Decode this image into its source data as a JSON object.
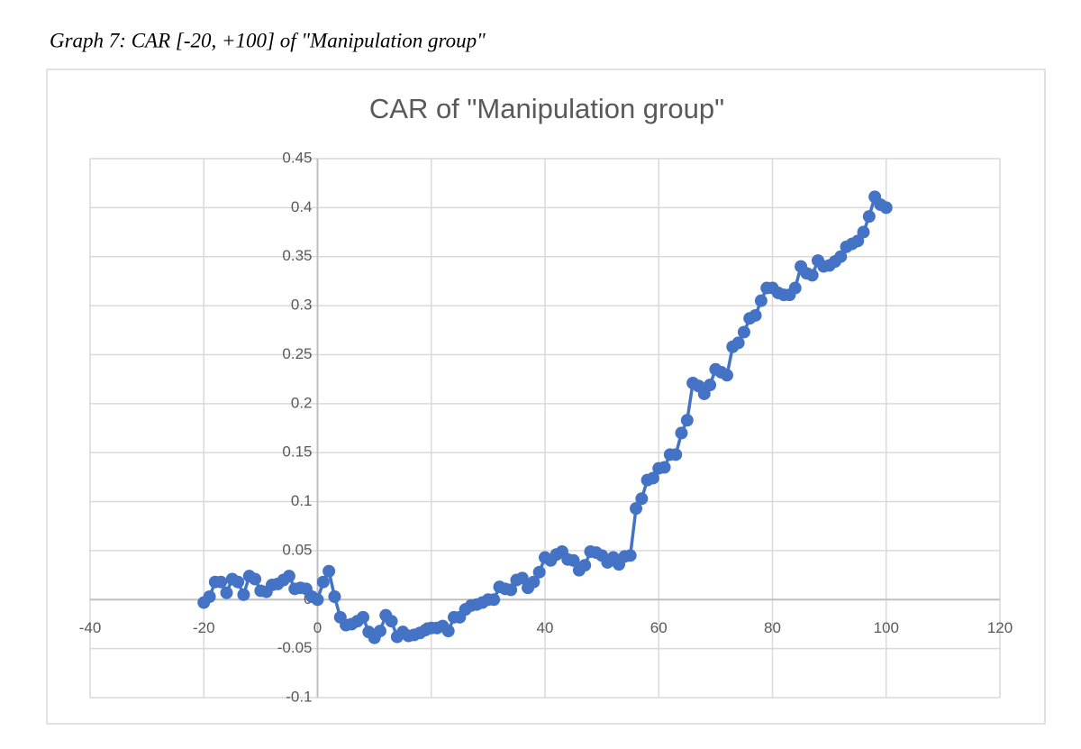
{
  "chart_data": {
    "type": "line",
    "caption": "Graph 7: CAR [-20, +100] of \"Manipulation group\"",
    "title": "CAR of \"Manipulation group\"",
    "x": [
      -20,
      -19,
      -18,
      -17,
      -16,
      -15,
      -14,
      -13,
      -12,
      -11,
      -10,
      -9,
      -8,
      -7,
      -6,
      -5,
      -4,
      -3,
      -2,
      -1,
      0,
      1,
      2,
      3,
      4,
      5,
      6,
      7,
      8,
      9,
      10,
      11,
      12,
      13,
      14,
      15,
      16,
      17,
      18,
      19,
      20,
      21,
      22,
      23,
      24,
      25,
      26,
      27,
      28,
      29,
      30,
      31,
      32,
      33,
      34,
      35,
      36,
      37,
      38,
      39,
      40,
      41,
      42,
      43,
      44,
      45,
      46,
      47,
      48,
      49,
      50,
      51,
      52,
      53,
      54,
      55,
      56,
      57,
      58,
      59,
      60,
      61,
      62,
      63,
      64,
      65,
      66,
      67,
      68,
      69,
      70,
      71,
      72,
      73,
      74,
      75,
      76,
      77,
      78,
      79,
      80,
      81,
      82,
      83,
      84,
      85,
      86,
      87,
      88,
      89,
      90,
      91,
      92,
      93,
      94,
      95,
      96,
      97,
      98,
      99,
      100
    ],
    "series": [
      {
        "color": "#4472c4",
        "values": [
          -0.003,
          0.003,
          0.018,
          0.018,
          0.007,
          0.021,
          0.018,
          0.005,
          0.024,
          0.021,
          0.009,
          0.008,
          0.015,
          0.016,
          0.02,
          0.024,
          0.011,
          0.012,
          0.011,
          0.003,
          0.0,
          0.018,
          0.029,
          0.003,
          -0.018,
          -0.026,
          -0.025,
          -0.022,
          -0.018,
          -0.033,
          -0.039,
          -0.032,
          -0.016,
          -0.022,
          -0.038,
          -0.033,
          -0.037,
          -0.036,
          -0.034,
          -0.031,
          -0.029,
          -0.029,
          -0.027,
          -0.032,
          -0.018,
          -0.018,
          -0.01,
          -0.006,
          -0.005,
          -0.003,
          0.0,
          0.0,
          0.013,
          0.011,
          0.01,
          0.02,
          0.022,
          0.012,
          0.018,
          0.028,
          0.043,
          0.04,
          0.046,
          0.049,
          0.041,
          0.04,
          0.03,
          0.035,
          0.049,
          0.048,
          0.045,
          0.038,
          0.043,
          0.036,
          0.044,
          0.045,
          0.093,
          0.103,
          0.122,
          0.124,
          0.134,
          0.135,
          0.148,
          0.148,
          0.17,
          0.183,
          0.221,
          0.218,
          0.21,
          0.219,
          0.235,
          0.232,
          0.229,
          0.258,
          0.262,
          0.273,
          0.287,
          0.29,
          0.305,
          0.318,
          0.318,
          0.313,
          0.311,
          0.311,
          0.318,
          0.34,
          0.333,
          0.331,
          0.346,
          0.34,
          0.341,
          0.345,
          0.35,
          0.36,
          0.363,
          0.366,
          0.375,
          0.391,
          0.411,
          0.403,
          0.4
        ]
      }
    ],
    "xlim": [
      -40,
      120
    ],
    "xticks": [
      -40,
      -20,
      0,
      20,
      40,
      60,
      80,
      100,
      120
    ],
    "ylim": [
      -0.1,
      0.45
    ],
    "yticks": [
      -0.1,
      -0.05,
      0,
      0.05,
      0.1,
      0.15,
      0.2,
      0.25,
      0.3,
      0.35,
      0.4,
      0.45
    ],
    "grid": true
  }
}
